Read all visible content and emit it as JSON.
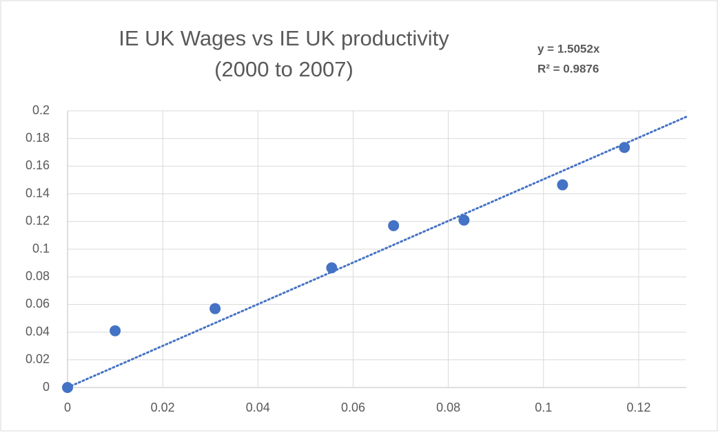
{
  "chart_data": {
    "type": "scatter",
    "title": [
      "IE UK Wages vs IE UK productivity",
      "(2000 to 2007)"
    ],
    "x": [
      0,
      0.01,
      0.031,
      0.0555,
      0.0685,
      0.0833,
      0.104,
      0.117
    ],
    "series": [
      {
        "color": "#4472c4",
        "values": [
          0,
          0.041,
          0.057,
          0.0865,
          0.117,
          0.121,
          0.1465,
          0.1735
        ]
      }
    ],
    "trendline": {
      "slope": 1.5052,
      "color": "#4472c4",
      "equation": "y = 1.5052x",
      "r_squared": "R² = 0.9876"
    },
    "xlim": [
      0,
      0.13
    ],
    "xticks": [
      0,
      0.02,
      0.04,
      0.06,
      0.08,
      0.1,
      0.12
    ],
    "ylim": [
      0,
      0.2
    ],
    "yticks": [
      0,
      0.02,
      0.04,
      0.06,
      0.08,
      0.1,
      0.12,
      0.14,
      0.16,
      0.18,
      0.2
    ],
    "grid": true
  }
}
